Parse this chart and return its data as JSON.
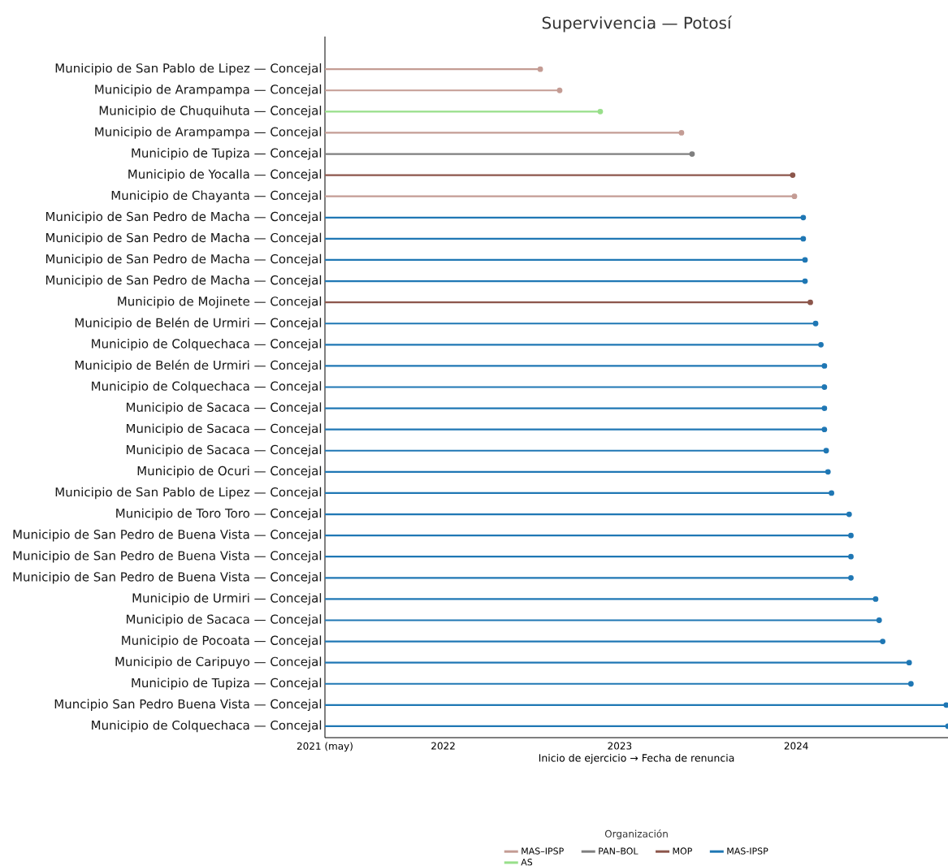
{
  "chart_data": {
    "type": "lollipop",
    "orientation": "horizontal",
    "title": "Supervivencia — Potosí",
    "xlabel": "Inicio de ejercicio → Fecha de renuncia",
    "legend_title": "Organización",
    "legend": "bottom",
    "marker": "circle",
    "categories": [
      "Municipio de San Pablo de Lipez — Concejal",
      "Municipio de Arampampa — Concejal",
      "Municipio de Chuquihuta — Concejal",
      "Municipio de Arampampa — Concejal",
      "Municipio de Tupiza — Concejal",
      "Municipio de Yocalla — Concejal",
      "Municipio de Chayanta — Concejal",
      "Municipio de San Pedro de Macha — Concejal",
      "Municipio de San Pedro de Macha — Concejal",
      "Municipio de San Pedro de Macha — Concejal",
      "Municipio de San Pedro de Macha — Concejal",
      "Municipio de Mojinete — Concejal",
      "Municipio de Belén de Urmiri — Concejal",
      "Municipio de Colquechaca — Concejal",
      "Municipio de Belén de Urmiri — Concejal",
      "Municipio de Colquechaca — Concejal",
      "Municipio de Sacaca — Concejal",
      "Municipio de Sacaca — Concejal",
      "Municipio de Sacaca — Concejal",
      "Municipio de Ocuri — Concejal",
      "Municipio de San Pablo de Lipez — Concejal",
      "Municipio de Toro Toro — Concejal",
      "Municipio de San Pedro de Buena Vista — Concejal",
      "Municipio de San Pedro de Buena Vista — Concejal",
      "Municipio de San Pedro de Buena Vista — Concejal",
      "Municipio de Urmiri — Concejal",
      "Municipio de Sacaca — Concejal",
      "Municipio de Pocoata — Concejal",
      "Municipio de Caripuyo — Concejal",
      "Municipio de Tupiza — Concejal",
      "Muncipio San Pedro Buena Vista — Concejal",
      "Municipio de Colquechaca — Concejal"
    ],
    "series": [
      {
        "name": "MAS–IPSP",
        "color": "#c49c94",
        "values": [
          2022.55,
          2022.66,
          null,
          2023.35,
          null,
          null,
          2023.99,
          null,
          null,
          null,
          null,
          null,
          null,
          null,
          null,
          null,
          null,
          null,
          null,
          null,
          null,
          null,
          null,
          null,
          null,
          null,
          null,
          null,
          null,
          null,
          null,
          null
        ]
      },
      {
        "name": "PAN–BOL",
        "color": "#7f7f7f",
        "values": [
          null,
          null,
          null,
          null,
          2023.41,
          null,
          null,
          null,
          null,
          null,
          null,
          null,
          null,
          null,
          null,
          null,
          null,
          null,
          null,
          null,
          null,
          null,
          null,
          null,
          null,
          null,
          null,
          null,
          null,
          null,
          null,
          null
        ]
      },
      {
        "name": "MOP",
        "color": "#8c564b",
        "values": [
          null,
          null,
          null,
          null,
          null,
          2023.98,
          null,
          null,
          null,
          null,
          null,
          2024.08,
          null,
          null,
          null,
          null,
          null,
          null,
          null,
          null,
          null,
          null,
          null,
          null,
          null,
          null,
          null,
          null,
          null,
          null,
          null,
          null
        ]
      },
      {
        "name": "MAS-IPSP",
        "color": "#1f77b4",
        "values": [
          null,
          null,
          null,
          null,
          null,
          null,
          null,
          2024.04,
          2024.04,
          2024.05,
          2024.05,
          null,
          2024.11,
          2024.14,
          2024.16,
          2024.16,
          2024.16,
          2024.16,
          2024.17,
          2024.18,
          2024.2,
          2024.3,
          2024.31,
          2024.31,
          2024.31,
          2024.45,
          2024.47,
          2024.49,
          2024.64,
          2024.65,
          2024.85,
          2024.86
        ]
      },
      {
        "name": "AS",
        "color": "#98df8a",
        "values": [
          null,
          null,
          2022.89,
          null,
          null,
          null,
          null,
          null,
          null,
          null,
          null,
          null,
          null,
          null,
          null,
          null,
          null,
          null,
          null,
          null,
          null,
          null,
          null,
          null,
          null,
          null,
          null,
          null,
          null,
          null,
          null,
          null
        ]
      }
    ],
    "xlim": [
      2021.33,
      2024.86
    ],
    "xticks": [
      {
        "value": 2021.33,
        "label": "2021 (may)"
      },
      2022,
      2023,
      2024
    ]
  }
}
